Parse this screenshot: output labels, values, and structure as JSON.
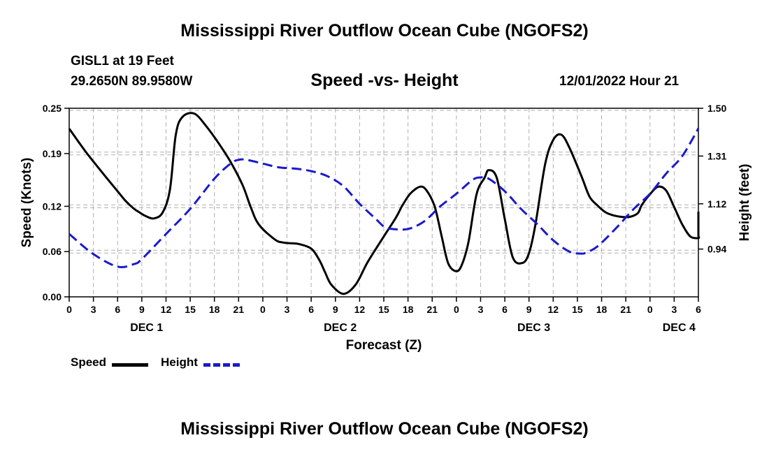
{
  "header": {
    "title": "Mississippi River Outflow Ocean Cube (NGOFS2)",
    "station": "GISL1 at 19 Feet",
    "coords": "29.2650N  89.9580W",
    "subtitle": "Speed -vs- Height",
    "datetime": "12/01/2022 Hour 21"
  },
  "footer": {
    "title": "Mississippi River Outflow Ocean Cube (NGOFS2)"
  },
  "legend": {
    "speed_label": "Speed",
    "height_label": "Height"
  },
  "colors": {
    "speed": "#000000",
    "height": "#1a1acc",
    "grid": "#b0b0b0"
  },
  "chart_data": {
    "type": "line",
    "title": "Speed -vs- Height",
    "xlabel": "Forecast (Z)",
    "ylabel": "Speed (Knots)",
    "y2label": "Height (feet)",
    "x_range_hours": [
      0,
      78
    ],
    "ylim": [
      0,
      0.25
    ],
    "y2lim": [
      0.75,
      1.5
    ],
    "y_ticks": [
      "0.00",
      "0.06",
      "0.12",
      "0.19",
      "0.25"
    ],
    "y2_ticks": [
      "0.94",
      "1.12",
      "1.31",
      "1.50"
    ],
    "x_tick_labels": [
      "0",
      "3",
      "6",
      "9",
      "12",
      "15",
      "18",
      "21",
      "0",
      "3",
      "6",
      "9",
      "12",
      "15",
      "18",
      "21",
      "0",
      "3",
      "6",
      "9",
      "12",
      "15",
      "18",
      "21",
      "0",
      "3",
      "6"
    ],
    "day_labels": [
      {
        "label": "DEC 1",
        "hour": 9.6
      },
      {
        "label": "DEC 2",
        "hour": 33.6
      },
      {
        "label": "DEC 3",
        "hour": 57.6
      },
      {
        "label": "DEC 4",
        "hour": 75.6
      }
    ],
    "series": [
      {
        "name": "Speed",
        "axis": "left",
        "style": "solid",
        "x": [
          0,
          2,
          4,
          6,
          7,
          8,
          8.7,
          9.5,
          10.5,
          11.6,
          12.5,
          13.2,
          14,
          15.5,
          17,
          18.5,
          20,
          21.5,
          22.5,
          23.5,
          25.5,
          26.5,
          27.5,
          28.5,
          30,
          31,
          31.7,
          32.5,
          34,
          35.5,
          37,
          39,
          40.5,
          41.3,
          42.3,
          43.5,
          44.3,
          45.3,
          46.2,
          47,
          48,
          48.7,
          49.5,
          50.5,
          51.5,
          52,
          53,
          54,
          55,
          56.2,
          57,
          57.8,
          59,
          60,
          61,
          62,
          63.5,
          64.5,
          65.5,
          66.5,
          67.5,
          68.5,
          69.5,
          70.5,
          71,
          72,
          73,
          74,
          75,
          76,
          77,
          78
        ],
        "values": [
          0.223,
          0.193,
          0.166,
          0.14,
          0.127,
          0.117,
          0.112,
          0.107,
          0.104,
          0.112,
          0.143,
          0.214,
          0.238,
          0.243,
          0.226,
          0.204,
          0.179,
          0.148,
          0.119,
          0.096,
          0.076,
          0.072,
          0.071,
          0.07,
          0.064,
          0.049,
          0.033,
          0.016,
          0.004,
          0.016,
          0.046,
          0.08,
          0.105,
          0.121,
          0.137,
          0.146,
          0.141,
          0.12,
          0.079,
          0.044,
          0.034,
          0.043,
          0.073,
          0.136,
          0.158,
          0.168,
          0.158,
          0.103,
          0.052,
          0.045,
          0.058,
          0.096,
          0.176,
          0.208,
          0.215,
          0.198,
          0.16,
          0.133,
          0.121,
          0.112,
          0.108,
          0.106,
          0.106,
          0.111,
          0.122,
          0.136,
          0.146,
          0.141,
          0.119,
          0.096,
          0.08,
          0.078
        ],
        "end_values": [
          0.081,
          0.086,
          0.097,
          0.113
        ]
      },
      {
        "name": "Height",
        "axis": "right",
        "style": "dashed",
        "x": [
          0,
          3,
          6,
          8,
          9,
          12,
          15,
          18,
          20,
          21,
          22,
          24,
          26,
          28,
          30,
          32,
          34,
          36,
          38,
          39,
          40,
          42,
          44,
          46,
          48,
          50,
          51,
          52,
          54,
          56,
          58,
          60,
          62,
          63.5,
          64,
          65,
          66,
          68,
          70,
          72,
          74,
          76,
          78
        ],
        "values": [
          1.0,
          0.92,
          0.87,
          0.88,
          0.9,
          1.0,
          1.1,
          1.22,
          1.28,
          1.295,
          1.295,
          1.28,
          1.265,
          1.26,
          1.25,
          1.23,
          1.19,
          1.12,
          1.06,
          1.03,
          1.02,
          1.02,
          1.05,
          1.11,
          1.16,
          1.215,
          1.225,
          1.22,
          1.17,
          1.1,
          1.04,
          0.975,
          0.93,
          0.922,
          0.925,
          0.94,
          0.965,
          1.03,
          1.1,
          1.16,
          1.24,
          1.31,
          1.42
        ]
      }
    ]
  }
}
